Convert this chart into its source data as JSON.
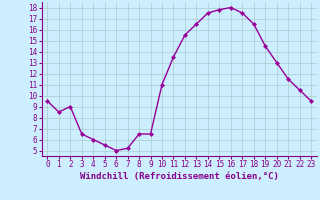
{
  "x": [
    0,
    1,
    2,
    3,
    4,
    5,
    6,
    7,
    8,
    9,
    10,
    11,
    12,
    13,
    14,
    15,
    16,
    17,
    18,
    19,
    20,
    21,
    22,
    23
  ],
  "y": [
    9.5,
    8.5,
    9.0,
    6.5,
    6.0,
    5.5,
    5.0,
    5.2,
    6.5,
    6.5,
    11.0,
    13.5,
    15.5,
    16.5,
    17.5,
    17.8,
    18.0,
    17.5,
    16.5,
    14.5,
    13.0,
    11.5,
    10.5,
    9.5
  ],
  "line_color": "#990099",
  "marker": "D",
  "marker_size": 2.0,
  "linewidth": 1.0,
  "xlabel": "Windchill (Refroidissement éolien,°C)",
  "xlim": [
    -0.5,
    23.5
  ],
  "ylim": [
    4.5,
    18.5
  ],
  "yticks": [
    5,
    6,
    7,
    8,
    9,
    10,
    11,
    12,
    13,
    14,
    15,
    16,
    17,
    18
  ],
  "xticks": [
    0,
    1,
    2,
    3,
    4,
    5,
    6,
    7,
    8,
    9,
    10,
    11,
    12,
    13,
    14,
    15,
    16,
    17,
    18,
    19,
    20,
    21,
    22,
    23
  ],
  "background_color": "#cceeff",
  "grid_color": "#aacccc",
  "tick_color": "#880088",
  "tick_fontsize": 5.5,
  "xlabel_fontsize": 6.5
}
